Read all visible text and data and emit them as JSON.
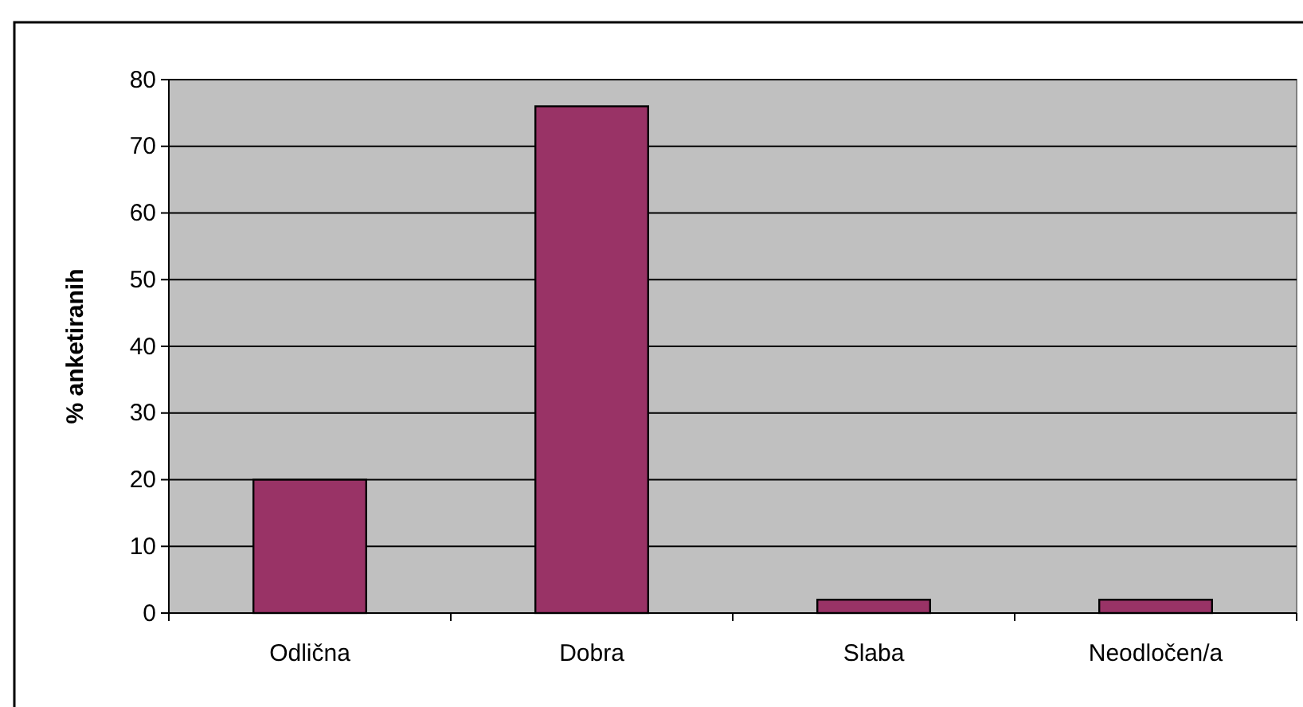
{
  "chart_data": {
    "type": "bar",
    "ylabel": "% anketiranih",
    "categories": [
      "Odlična",
      "Dobra",
      "Slaba",
      "Neodločen/a"
    ],
    "values": [
      20,
      76,
      2,
      2
    ],
    "color": "#993366",
    "ylim": [
      0,
      80
    ],
    "yticks": [
      0,
      10,
      20,
      30,
      40,
      50,
      60,
      70,
      80
    ],
    "grid": "y"
  }
}
